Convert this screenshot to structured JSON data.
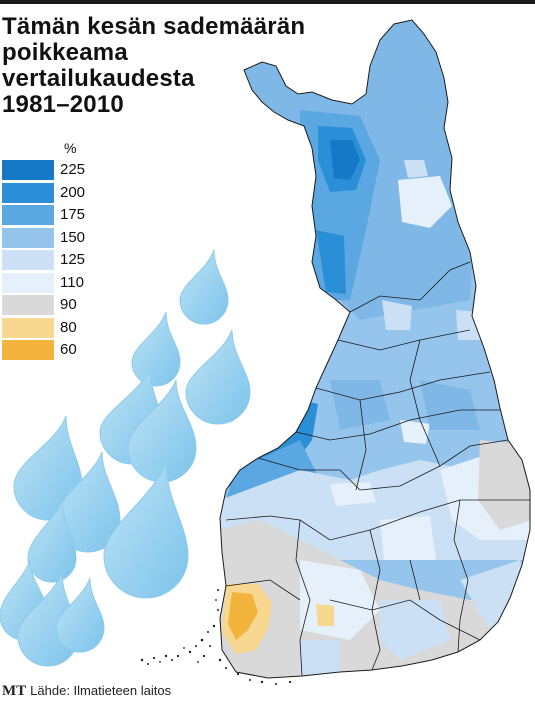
{
  "title_lines": [
    "Tämän kesän sademäärän",
    "poikkeama",
    "vertailukaudesta",
    "1981–2010"
  ],
  "legend": {
    "unit": "%",
    "items": [
      {
        "label": "225",
        "color": "#1579c6"
      },
      {
        "label": "200",
        "color": "#2a8fd6"
      },
      {
        "label": "175",
        "color": "#5aa7e2"
      },
      {
        "label": "150",
        "color": "#95c5ec"
      },
      {
        "label": "125",
        "color": "#cbe0f5"
      },
      {
        "label": "110",
        "color": "#e6f0fa"
      },
      {
        "label": "90",
        "color": "#d9d9d9"
      },
      {
        "label": "80",
        "color": "#f8d890"
      },
      {
        "label": "60",
        "color": "#f2b43c"
      }
    ]
  },
  "source": {
    "logo": "MT",
    "text": "Lähde: Ilmatieteen laitos"
  }
}
